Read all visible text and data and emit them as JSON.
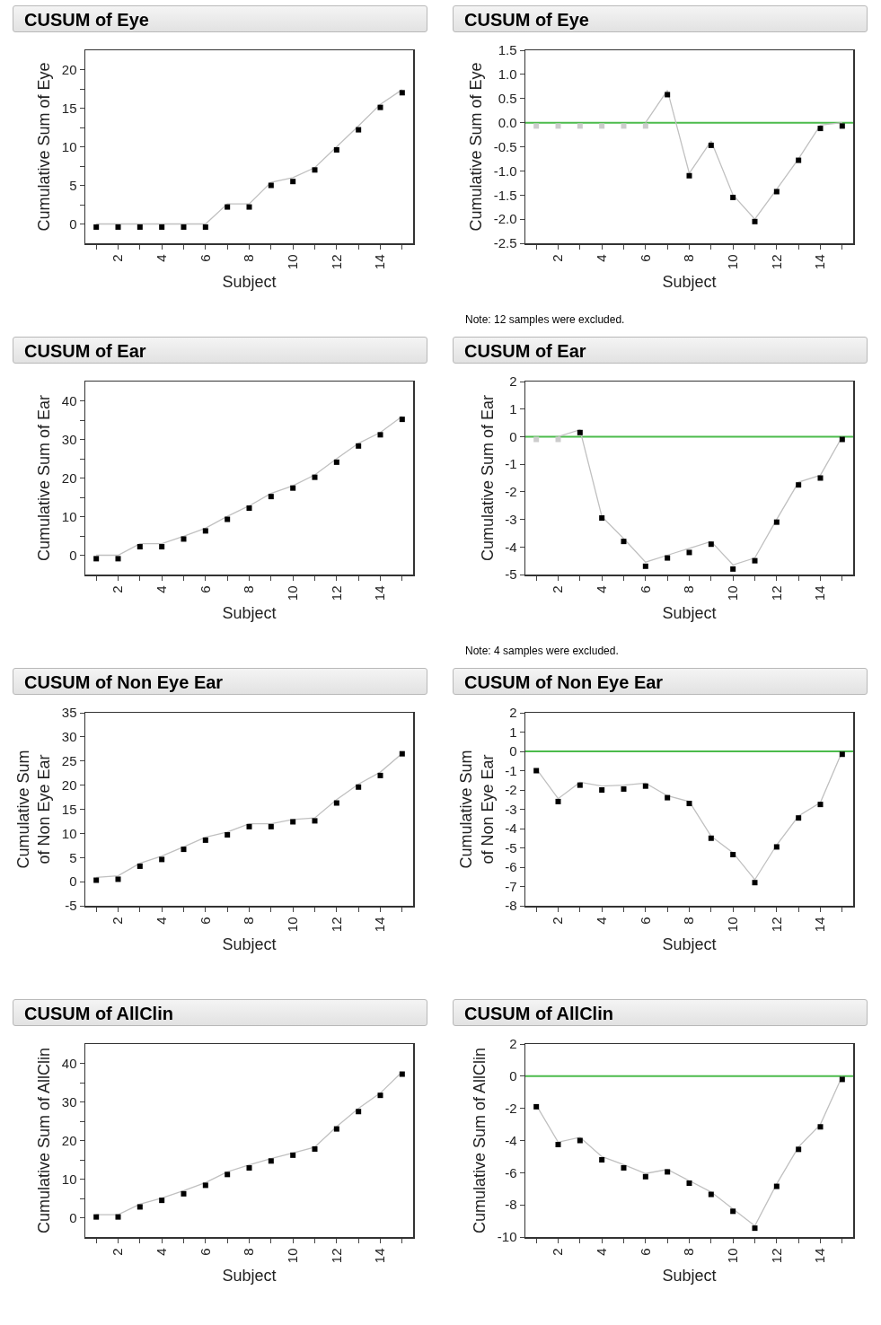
{
  "chart_data": [
    {
      "type": "scatter",
      "title": "CUSUM of Eye",
      "xlabel": "Subject",
      "ylabel": "Cumulative Sum of Eye",
      "marker": "square",
      "x": [
        1,
        2,
        3,
        4,
        5,
        6,
        7,
        8,
        9,
        10,
        11,
        12,
        13,
        14,
        15
      ],
      "xlim": [
        0.5,
        15.5
      ],
      "xticks": [
        {
          "value": 1,
          "label": null
        },
        2,
        {
          "value": 3,
          "label": null
        },
        4,
        {
          "value": 5,
          "label": null
        },
        6,
        {
          "value": 7,
          "label": null
        },
        8,
        {
          "value": 9,
          "label": null
        },
        10,
        {
          "value": 11,
          "label": null
        },
        12,
        {
          "value": 13,
          "label": null
        },
        14,
        {
          "value": 15,
          "label": null
        }
      ],
      "ylim": [
        -2.5,
        22.5
      ],
      "yticks": [
        0,
        {
          "value": 2.5,
          "label": null
        },
        5,
        {
          "value": 7.5,
          "label": null
        },
        10,
        {
          "value": 12.5,
          "label": null
        },
        15,
        {
          "value": 17.5,
          "label": null
        },
        20
      ],
      "series": [
        {
          "type": "line",
          "marker": "none",
          "color": "#c0c0c0",
          "values": [
            0,
            0,
            0,
            0,
            0,
            0,
            2.6,
            2.6,
            5.4,
            6.0,
            7.3,
            10,
            12.7,
            15.5,
            17.4
          ]
        },
        {
          "color": "#000000",
          "values": [
            -0.4,
            -0.4,
            -0.4,
            -0.4,
            -0.4,
            -0.4,
            2.2,
            2.2,
            5.0,
            5.5,
            7.0,
            9.6,
            12.2,
            15.1,
            17.0
          ]
        }
      ]
    },
    {
      "type": "scatter",
      "title": "CUSUM of Eye",
      "xlabel": "Subject",
      "ylabel": "Cumulative Sum of Eye",
      "marker": "square",
      "x": [
        1,
        2,
        3,
        4,
        5,
        6,
        7,
        8,
        9,
        10,
        11,
        12,
        13,
        14,
        15
      ],
      "xlim": [
        0.5,
        15.5
      ],
      "xticks": [
        {
          "value": 1,
          "label": null
        },
        2,
        {
          "value": 3,
          "label": null
        },
        4,
        {
          "value": 5,
          "label": null
        },
        6,
        {
          "value": 7,
          "label": null
        },
        8,
        {
          "value": 9,
          "label": null
        },
        10,
        {
          "value": 11,
          "label": null
        },
        12,
        {
          "value": 13,
          "label": null
        },
        14,
        {
          "value": 15,
          "label": null
        }
      ],
      "ylim": [
        -2.5,
        1.5
      ],
      "yticks": [
        -2.5,
        {
          "value": -2,
          "label": "-2.0"
        },
        -1.5,
        {
          "value": -1,
          "label": "-1.0"
        },
        -0.5,
        {
          "value": 0,
          "label": "0.0"
        },
        0.5,
        {
          "value": 1,
          "label": "1.0"
        },
        1.5
      ],
      "ref_lines": [
        {
          "axis": "y",
          "value": 0,
          "color": "#4cbb4c"
        }
      ],
      "annotations": [
        "Note: 12 samples were excluded."
      ],
      "series": [
        {
          "type": "line",
          "marker": "none",
          "color": "#c0c0c0",
          "values": [
            null,
            null,
            null,
            null,
            null,
            0,
            0.67,
            -1.05,
            -0.38,
            -1.5,
            -2.0,
            -1.38,
            -0.75,
            -0.05,
            0.0
          ]
        },
        {
          "color": "#cccccc",
          "values": [
            -0.07,
            -0.07,
            -0.07,
            -0.07,
            -0.07,
            -0.07,
            null,
            null,
            null,
            null,
            null,
            null,
            null,
            null,
            null
          ]
        },
        {
          "color": "#000000",
          "values": [
            null,
            null,
            null,
            null,
            null,
            null,
            0.58,
            -1.1,
            -0.47,
            -1.55,
            -2.05,
            -1.43,
            -0.78,
            -0.12,
            -0.07
          ]
        }
      ]
    },
    {
      "type": "scatter",
      "title": "CUSUM of Ear",
      "xlabel": "Subject",
      "ylabel": "Cumulative Sum of Ear",
      "marker": "square",
      "x": [
        1,
        2,
        3,
        4,
        5,
        6,
        7,
        8,
        9,
        10,
        11,
        12,
        13,
        14,
        15
      ],
      "xlim": [
        0.5,
        15.5
      ],
      "xticks": [
        {
          "value": 1,
          "label": null
        },
        2,
        {
          "value": 3,
          "label": null
        },
        4,
        {
          "value": 5,
          "label": null
        },
        6,
        {
          "value": 7,
          "label": null
        },
        8,
        {
          "value": 9,
          "label": null
        },
        10,
        {
          "value": 11,
          "label": null
        },
        12,
        {
          "value": 13,
          "label": null
        },
        14,
        {
          "value": 15,
          "label": null
        }
      ],
      "ylim": [
        -5,
        45
      ],
      "yticks": [
        0,
        {
          "value": 5,
          "label": null
        },
        10,
        {
          "value": 15,
          "label": null
        },
        20,
        {
          "value": 25,
          "label": null
        },
        30,
        {
          "value": 35,
          "label": null
        },
        40
      ],
      "series": [
        {
          "type": "line",
          "marker": "none",
          "color": "#c0c0c0",
          "values": [
            0,
            0,
            3,
            3,
            4.9,
            7,
            10.1,
            12.8,
            16,
            18,
            20.8,
            25,
            29,
            31.8,
            36
          ]
        },
        {
          "color": "#000000",
          "values": [
            -0.9,
            -0.9,
            2.2,
            2.2,
            4.2,
            6.3,
            9.3,
            12.2,
            15.2,
            17.4,
            20.2,
            24.1,
            28.3,
            31.2,
            35.2
          ]
        }
      ]
    },
    {
      "type": "scatter",
      "title": "CUSUM of Ear",
      "xlabel": "Subject",
      "ylabel": "Cumulative Sum of Ear",
      "marker": "square",
      "x": [
        1,
        2,
        3,
        4,
        5,
        6,
        7,
        8,
        9,
        10,
        11,
        12,
        13,
        14,
        15
      ],
      "xlim": [
        0.5,
        15.5
      ],
      "xticks": [
        {
          "value": 1,
          "label": null
        },
        2,
        {
          "value": 3,
          "label": null
        },
        4,
        {
          "value": 5,
          "label": null
        },
        6,
        {
          "value": 7,
          "label": null
        },
        8,
        {
          "value": 9,
          "label": null
        },
        10,
        {
          "value": 11,
          "label": null
        },
        12,
        {
          "value": 13,
          "label": null
        },
        14,
        {
          "value": 15,
          "label": null
        }
      ],
      "ylim": [
        -5,
        2
      ],
      "yticks": [
        -5,
        -4,
        -3,
        -2,
        -1,
        0,
        1,
        2
      ],
      "ref_lines": [
        {
          "axis": "y",
          "value": 0,
          "color": "#4cbb4c"
        }
      ],
      "annotations": [
        "Note: 4 samples were excluded."
      ],
      "series": [
        {
          "type": "line",
          "marker": "none",
          "color": "#c0c0c0",
          "values": [
            null,
            0,
            0.25,
            -2.9,
            -3.7,
            -4.55,
            -4.3,
            -4.05,
            -3.8,
            -4.65,
            -4.4,
            -3.0,
            -1.65,
            -1.4,
            0
          ]
        },
        {
          "color": "#cccccc",
          "values": [
            -0.1,
            -0.1,
            null,
            null,
            null,
            null,
            null,
            null,
            null,
            null,
            null,
            null,
            null,
            null,
            null
          ]
        },
        {
          "color": "#000000",
          "values": [
            null,
            null,
            0.15,
            -2.95,
            -3.8,
            -4.7,
            -4.4,
            -4.2,
            -3.9,
            -4.8,
            -4.5,
            -3.1,
            -1.75,
            -1.5,
            -0.1
          ]
        }
      ]
    },
    {
      "type": "scatter",
      "title": "CUSUM of Non Eye Ear",
      "xlabel": "Subject",
      "ylabel": "Cumulative Sum\nof Non Eye Ear",
      "marker": "square",
      "x": [
        1,
        2,
        3,
        4,
        5,
        6,
        7,
        8,
        9,
        10,
        11,
        12,
        13,
        14,
        15
      ],
      "xlim": [
        0.5,
        15.5
      ],
      "xticks": [
        {
          "value": 1,
          "label": null
        },
        2,
        {
          "value": 3,
          "label": null
        },
        4,
        {
          "value": 5,
          "label": null
        },
        6,
        {
          "value": 7,
          "label": null
        },
        8,
        {
          "value": 9,
          "label": null
        },
        10,
        {
          "value": 11,
          "label": null
        },
        12,
        {
          "value": 13,
          "label": null
        },
        14,
        {
          "value": 15,
          "label": null
        }
      ],
      "ylim": [
        -5,
        35
      ],
      "yticks": [
        -5,
        0,
        5,
        10,
        15,
        20,
        25,
        30,
        35
      ],
      "series": [
        {
          "type": "line",
          "marker": "none",
          "color": "#c0c0c0",
          "values": [
            0.9,
            1.2,
            3.8,
            5.3,
            7.2,
            9.2,
            10.3,
            12,
            12,
            12.9,
            13.2,
            17,
            20.2,
            22.7,
            26.6
          ]
        },
        {
          "color": "#000000",
          "values": [
            0.3,
            0.5,
            3.2,
            4.6,
            6.7,
            8.6,
            9.7,
            11.4,
            11.4,
            12.4,
            12.6,
            16.3,
            19.6,
            22.0,
            26.5
          ]
        }
      ]
    },
    {
      "type": "scatter",
      "title": "CUSUM of Non Eye Ear",
      "xlabel": "Subject",
      "ylabel": "Cumulative Sum\nof Non Eye Ear",
      "marker": "square",
      "x": [
        1,
        2,
        3,
        4,
        5,
        6,
        7,
        8,
        9,
        10,
        11,
        12,
        13,
        14,
        15
      ],
      "xlim": [
        0.5,
        15.5
      ],
      "xticks": [
        {
          "value": 1,
          "label": null
        },
        2,
        {
          "value": 3,
          "label": null
        },
        4,
        {
          "value": 5,
          "label": null
        },
        6,
        {
          "value": 7,
          "label": null
        },
        8,
        {
          "value": 9,
          "label": null
        },
        10,
        {
          "value": 11,
          "label": null
        },
        12,
        {
          "value": 13,
          "label": null
        },
        14,
        {
          "value": 15,
          "label": null
        }
      ],
      "ylim": [
        -8,
        2
      ],
      "yticks": [
        -8,
        -7,
        -6,
        -5,
        -4,
        -3,
        -2,
        -1,
        0,
        1,
        2
      ],
      "ref_lines": [
        {
          "axis": "y",
          "value": 0,
          "color": "#4cbb4c"
        }
      ],
      "series": [
        {
          "type": "line",
          "marker": "none",
          "color": "#c0c0c0",
          "values": [
            -0.9,
            -2.45,
            -1.6,
            -1.8,
            -1.75,
            -1.65,
            -2.3,
            -2.6,
            -4.4,
            -5.25,
            -6.65,
            -4.85,
            -3.35,
            -2.65,
            0
          ]
        },
        {
          "color": "#000000",
          "values": [
            -1.0,
            -2.6,
            -1.75,
            -2.0,
            -1.95,
            -1.8,
            -2.4,
            -2.7,
            -4.5,
            -5.35,
            -6.8,
            -4.95,
            -3.45,
            -2.75,
            -0.15
          ]
        }
      ]
    },
    {
      "type": "scatter",
      "title": "CUSUM of AllClin",
      "xlabel": "Subject",
      "ylabel": "Cumulative Sum of AllClin",
      "marker": "square",
      "x": [
        1,
        2,
        3,
        4,
        5,
        6,
        7,
        8,
        9,
        10,
        11,
        12,
        13,
        14,
        15
      ],
      "xlim": [
        0.5,
        15.5
      ],
      "xticks": [
        {
          "value": 1,
          "label": null
        },
        2,
        {
          "value": 3,
          "label": null
        },
        4,
        {
          "value": 5,
          "label": null
        },
        6,
        {
          "value": 7,
          "label": null
        },
        8,
        {
          "value": 9,
          "label": null
        },
        10,
        {
          "value": 11,
          "label": null
        },
        12,
        {
          "value": 13,
          "label": null
        },
        14,
        {
          "value": 15,
          "label": null
        }
      ],
      "ylim": [
        -5,
        45
      ],
      "yticks": [
        0,
        {
          "value": 5,
          "label": null
        },
        10,
        {
          "value": 15,
          "label": null
        },
        20,
        {
          "value": 25,
          "label": null
        },
        30,
        {
          "value": 35,
          "label": null
        },
        40
      ],
      "series": [
        {
          "type": "line",
          "marker": "none",
          "color": "#c0c0c0",
          "values": [
            0.8,
            0.8,
            3.5,
            5.1,
            7,
            9.1,
            11.9,
            13.7,
            15.3,
            16.8,
            18.3,
            23.6,
            28.3,
            32.3,
            37.8
          ]
        },
        {
          "color": "#000000",
          "values": [
            0.2,
            0.2,
            2.8,
            4.5,
            6.2,
            8.4,
            11.2,
            12.9,
            14.7,
            16.2,
            17.8,
            23.0,
            27.5,
            31.7,
            37.2
          ]
        }
      ]
    },
    {
      "type": "scatter",
      "title": "CUSUM of AllClin",
      "xlabel": "Subject",
      "ylabel": "Cumulative Sum of AllClin",
      "marker": "square",
      "x": [
        1,
        2,
        3,
        4,
        5,
        6,
        7,
        8,
        9,
        10,
        11,
        12,
        13,
        14,
        15
      ],
      "xlim": [
        0.5,
        15.5
      ],
      "xticks": [
        {
          "value": 1,
          "label": null
        },
        2,
        {
          "value": 3,
          "label": null
        },
        4,
        {
          "value": 5,
          "label": null
        },
        6,
        {
          "value": 7,
          "label": null
        },
        8,
        {
          "value": 9,
          "label": null
        },
        10,
        {
          "value": 11,
          "label": null
        },
        12,
        {
          "value": 13,
          "label": null
        },
        14,
        {
          "value": 15,
          "label": null
        }
      ],
      "ylim": [
        -10,
        2
      ],
      "yticks": [
        -10,
        -8,
        -6,
        -4,
        -2,
        0,
        2
      ],
      "ref_lines": [
        {
          "axis": "y",
          "value": 0,
          "color": "#4cbb4c"
        }
      ],
      "series": [
        {
          "type": "line",
          "marker": "none",
          "color": "#c0c0c0",
          "values": [
            -1.8,
            -4.1,
            -3.8,
            -5.0,
            -5.5,
            -6.05,
            -5.8,
            -6.5,
            -7.2,
            -8.25,
            -9.3,
            -6.7,
            -4.4,
            -3.0,
            0
          ]
        },
        {
          "color": "#000000",
          "values": [
            -1.9,
            -4.25,
            -4.0,
            -5.2,
            -5.7,
            -6.25,
            -5.95,
            -6.65,
            -7.35,
            -8.4,
            -9.45,
            -6.85,
            -4.55,
            -3.15,
            -0.2
          ]
        }
      ]
    }
  ]
}
